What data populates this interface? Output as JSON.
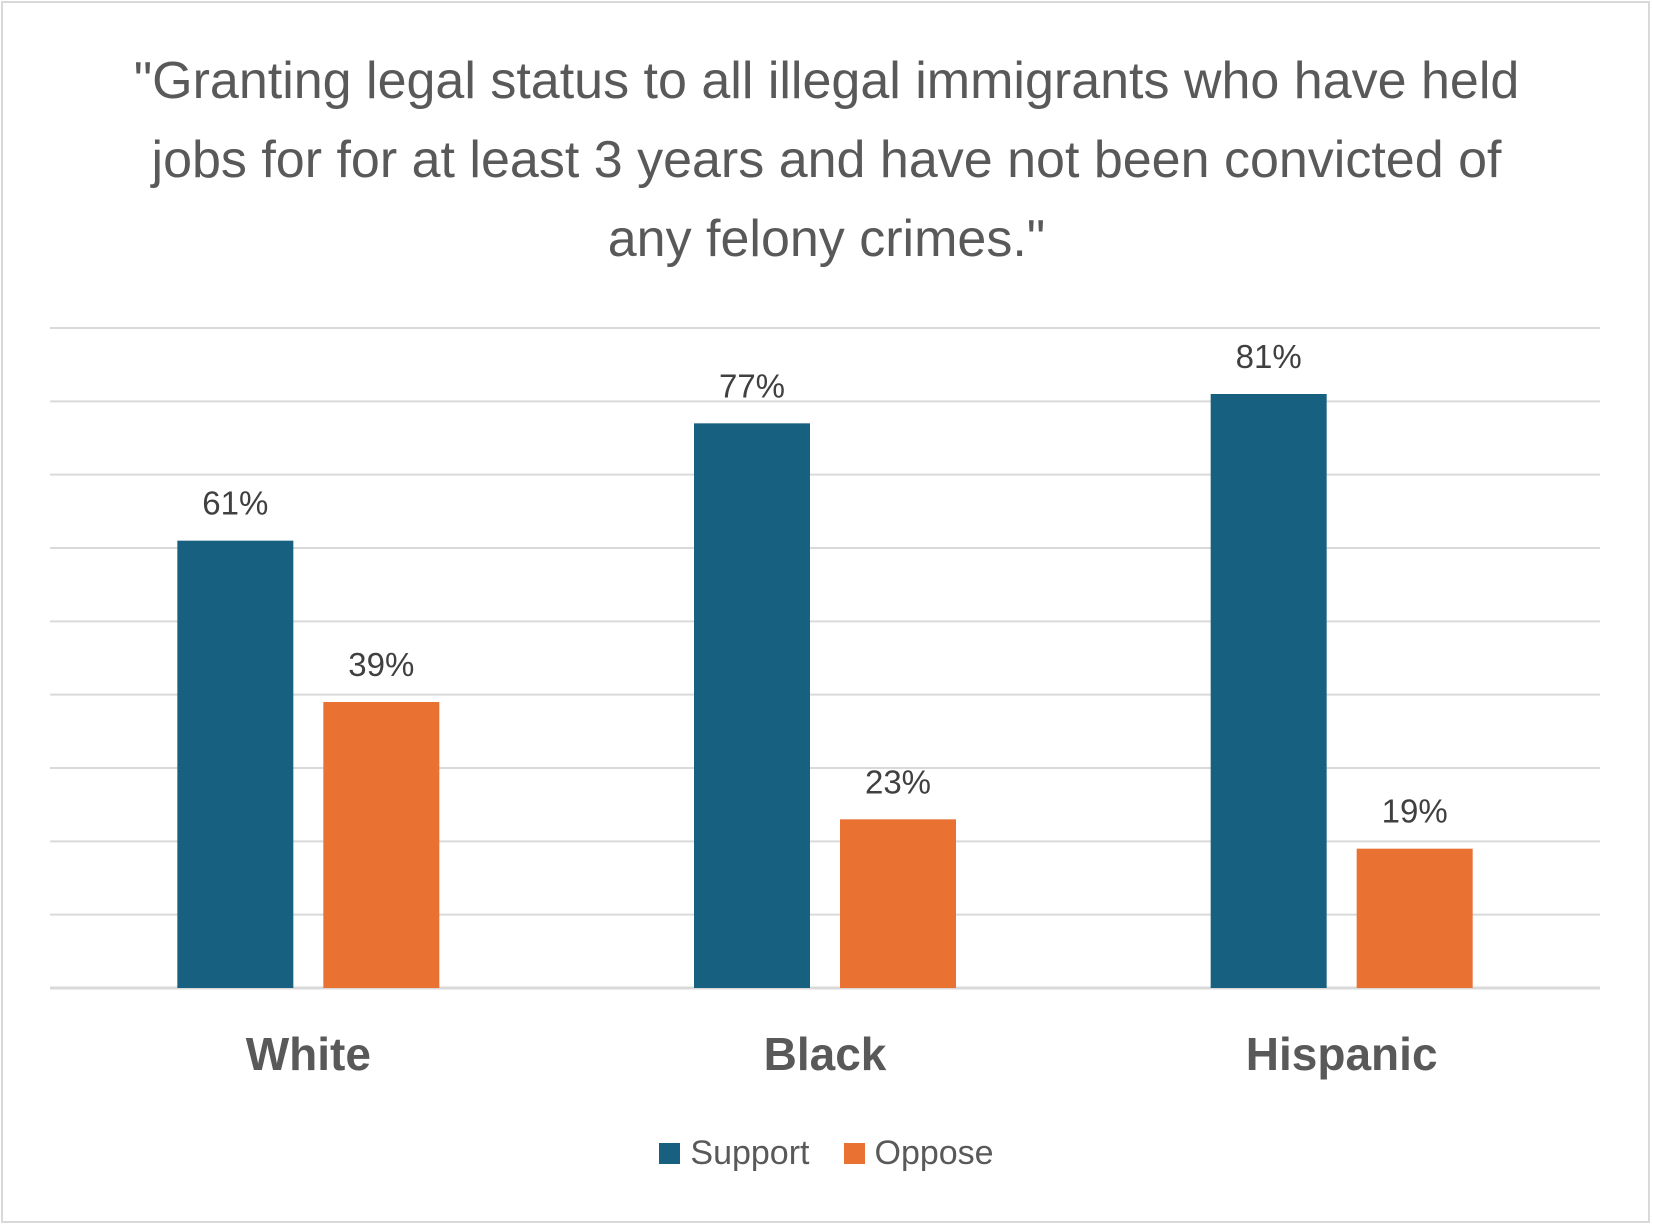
{
  "chart_data": {
    "type": "bar",
    "title": "\"Granting legal status to all illegal immigrants who have held jobs for for at least 3 years and have not been convicted of any felony crimes.\"",
    "categories": [
      "White",
      "Black",
      "Hispanic"
    ],
    "series": [
      {
        "name": "Support",
        "values": [
          61,
          77,
          81
        ],
        "color": "#17607f"
      },
      {
        "name": "Oppose",
        "values": [
          39,
          23,
          19
        ],
        "color": "#e97132"
      }
    ],
    "data_labels": [
      [
        "61%",
        "77%",
        "81%"
      ],
      [
        "39%",
        "23%",
        "19%"
      ]
    ],
    "ylim": [
      0,
      90
    ],
    "grid": true,
    "y_axis_labels_shown": false,
    "legend": "bottom",
    "colors": {
      "gridline": "#d9d9d9",
      "text": "#595959",
      "label": "#404040"
    }
  },
  "legend": {
    "support": "Support",
    "oppose": "Oppose"
  }
}
